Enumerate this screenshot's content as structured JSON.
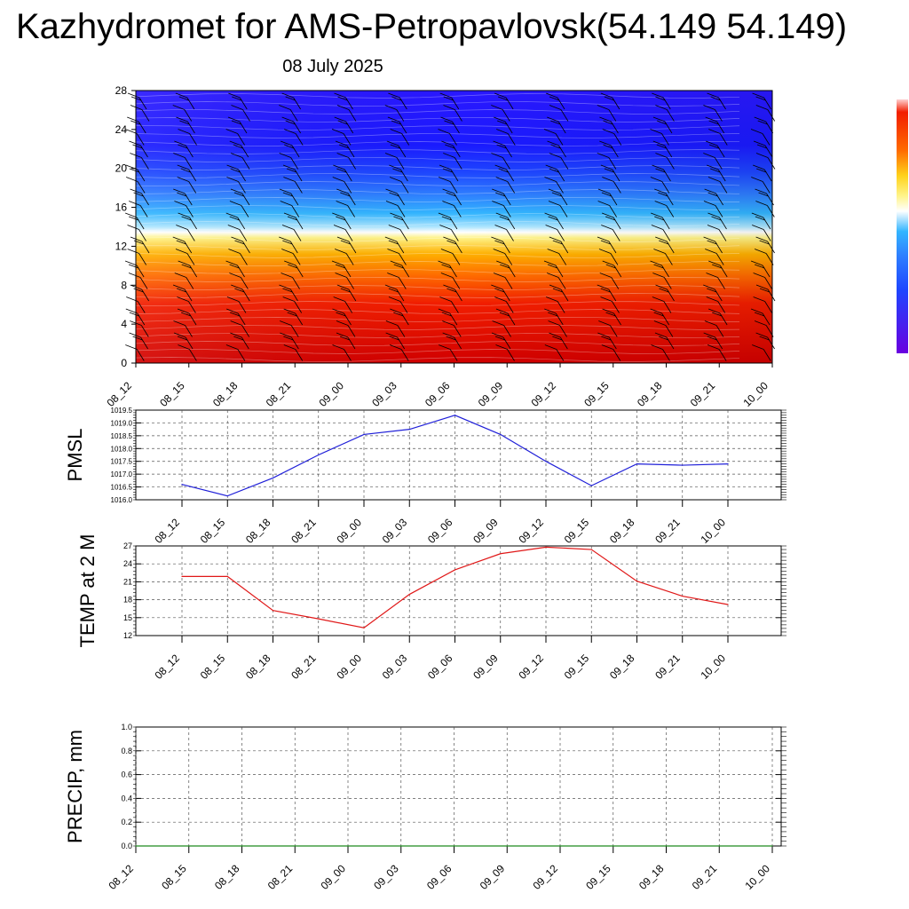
{
  "header": {
    "title": "Kazhydromet for AMS-Petropavlovsk(54.149 54.149)",
    "subtitle": "08 July 2025"
  },
  "colors": {
    "pmsl_line": "#1f1fd8",
    "temp_line": "#e01818",
    "precip_line": "#1e8a1e",
    "barb": "#000000",
    "grid": "#555555",
    "colorbar": [
      "#6a00e0",
      "#3a1cff",
      "#1e46ff",
      "#2e7dff",
      "#33b5ff",
      "#8fdcff",
      "#ffffff",
      "#fff48a",
      "#ffd21a",
      "#ff9f0a",
      "#ff6a00",
      "#f21e00",
      "#d30000",
      "#ffb0b0"
    ]
  },
  "chart_data": [
    {
      "type": "heatmap",
      "description_labels": {
        "xlabel": "",
        "ylabel": ""
      },
      "x_ticks": [
        "08_12",
        "08_15",
        "08_18",
        "08_21",
        "09_00",
        "09_03",
        "09_06",
        "09_09",
        "09_12",
        "09_15",
        "09_18",
        "09_21",
        "10_00"
      ],
      "y_ticks": [
        "0",
        "4",
        "8",
        "12",
        "16",
        "20",
        "24",
        "28"
      ],
      "ylim": [
        0,
        28
      ],
      "overlay": "wind barbs"
    },
    {
      "type": "line",
      "ylabel": "PMSL",
      "x": [
        "08_12",
        "08_15",
        "08_18",
        "08_21",
        "09_00",
        "09_03",
        "09_06",
        "09_09",
        "09_12",
        "09_15",
        "09_18",
        "09_21",
        "10_00"
      ],
      "y_ticks": [
        "1016.0",
        "1016.5",
        "1017.0",
        "1017.5",
        "1018.0",
        "1018.5",
        "1019.0",
        "1019.5"
      ],
      "ylim": [
        1016.0,
        1019.5
      ],
      "grid": true,
      "values": [
        1016.6,
        1016.15,
        1016.85,
        1017.75,
        1018.55,
        1018.75,
        1019.3,
        1018.55,
        1017.5,
        1016.55,
        1017.4,
        1017.35,
        1017.4
      ]
    },
    {
      "type": "line",
      "ylabel": "TEMP at 2 M",
      "x": [
        "08_12",
        "08_15",
        "08_18",
        "08_21",
        "09_00",
        "09_03",
        "09_06",
        "09_09",
        "09_12",
        "09_15",
        "09_18",
        "09_21",
        "10_00"
      ],
      "y_ticks": [
        "12",
        "15",
        "18",
        "21",
        "24",
        "27"
      ],
      "ylim": [
        12,
        27
      ],
      "grid": true,
      "values": [
        21.9,
        21.9,
        16.2,
        14.8,
        13.3,
        18.9,
        23.0,
        25.7,
        26.8,
        26.4,
        21.1,
        18.6,
        17.2
      ]
    },
    {
      "type": "line",
      "ylabel": "PRECIP, mm",
      "x": [
        "08_12",
        "08_15",
        "08_18",
        "08_21",
        "09_00",
        "09_03",
        "09_06",
        "09_09",
        "09_12",
        "09_15",
        "09_18",
        "09_21",
        "10_00"
      ],
      "y_ticks": [
        "0.0",
        "0.2",
        "0.4",
        "0.6",
        "0.8",
        "1.0"
      ],
      "ylim": [
        0,
        1.0
      ],
      "grid": true,
      "values": [
        0,
        0,
        0,
        0,
        0,
        0,
        0,
        0,
        0,
        0,
        0,
        0,
        0
      ]
    }
  ]
}
